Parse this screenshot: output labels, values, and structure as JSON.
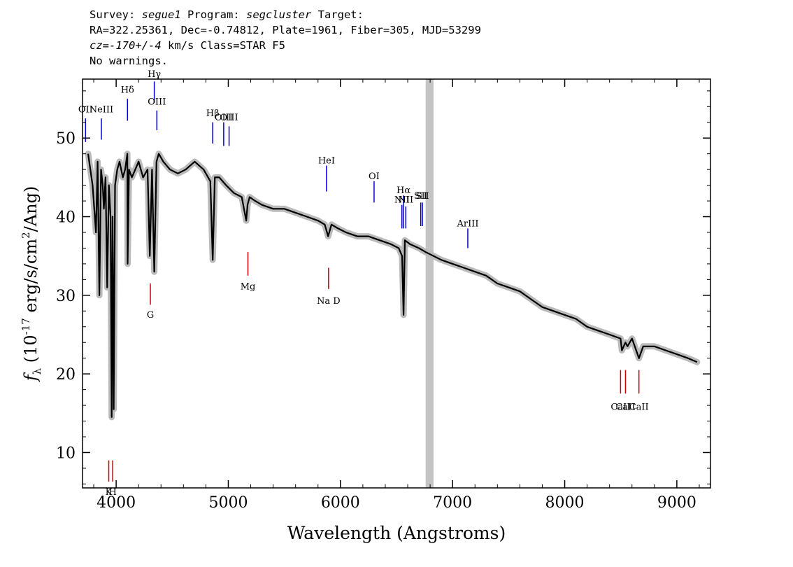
{
  "header": {
    "line1": {
      "survey_label": "Survey: ",
      "survey": "segue1",
      "program_label": " Program: ",
      "program": "segcluster",
      "target_label": " Target:"
    },
    "line2": "RA=322.25361, Dec=-0.74812, Plate=1961, Fiber=305, MJD=53299",
    "line3": {
      "cz": "cz=-170+/-4",
      "rest": " km/s Class=STAR F5"
    },
    "line4": "No warnings."
  },
  "chart_data": {
    "type": "line",
    "title": "",
    "xlabel": "Wavelength (Angstroms)",
    "ylabel": "f_λ (10^-17 erg/s/cm^2/Ang)",
    "xlim": [
      3700,
      9300
    ],
    "ylim": [
      5.5,
      57.5
    ],
    "x_ticks": [
      4000,
      5000,
      6000,
      7000,
      8000,
      9000
    ],
    "y_ticks": [
      10,
      20,
      30,
      40,
      50
    ],
    "grid": false,
    "masked_band": [
      6760,
      6830
    ],
    "colors": {
      "flux": "#000000",
      "error_band": "#bbbbbb",
      "emission": "#0000cc",
      "absorption": "#cc0000",
      "mask": "#c4c4c4"
    },
    "series": [
      {
        "x": [
          3750,
          3790,
          3820,
          3835,
          3850,
          3865,
          3880,
          3890,
          3905,
          3920,
          3935,
          3950,
          3960,
          3968,
          3978,
          3990,
          4010,
          4030,
          4060,
          4080,
          4100,
          4102,
          4115,
          4140,
          4170,
          4200,
          4240,
          4280,
          4300,
          4320,
          4340,
          4360,
          4380,
          4420,
          4480,
          4550,
          4620,
          4700,
          4780,
          4840,
          4861,
          4880,
          4920,
          4980,
          5050,
          5120,
          5160,
          5172,
          5190,
          5240,
          5300,
          5400,
          5500,
          5600,
          5700,
          5800,
          5860,
          5890,
          5920,
          5980,
          6050,
          6150,
          6250,
          6350,
          6450,
          6520,
          6550,
          6563,
          6575,
          6620,
          6700,
          6760,
          6830,
          6900,
          7000,
          7100,
          7200,
          7300,
          7400,
          7500,
          7600,
          7700,
          7800,
          7900,
          8000,
          8100,
          8200,
          8300,
          8400,
          8498,
          8510,
          8542,
          8560,
          8600,
          8662,
          8700,
          8800,
          8900,
          9000,
          9100,
          9180
        ],
        "y": [
          48,
          44,
          38,
          47,
          30,
          46,
          44,
          41,
          45,
          31,
          44,
          40,
          14.5,
          40,
          15.5,
          44,
          46,
          47,
          45,
          46,
          48,
          34,
          46,
          45,
          46,
          47,
          45,
          46,
          35,
          46,
          33,
          47,
          48,
          47,
          46,
          45.5,
          46,
          47,
          46,
          44.5,
          34.5,
          45,
          45,
          44,
          43,
          42.5,
          39.5,
          41.5,
          42.5,
          42,
          41.5,
          41,
          41,
          40.5,
          40,
          39.5,
          39,
          37.5,
          39,
          38.5,
          38,
          37.5,
          37.5,
          37,
          36.5,
          36,
          35,
          27.5,
          37,
          36.5,
          36,
          35.5,
          35,
          34.5,
          34,
          33.5,
          33,
          32.5,
          31.5,
          31,
          30.5,
          29.5,
          28.5,
          28,
          27.5,
          27,
          26,
          25.5,
          25,
          24.5,
          23,
          24,
          23.5,
          24.5,
          22,
          23.5,
          23.5,
          23,
          22.5,
          22,
          21.5
        ]
      }
    ],
    "lines": [
      {
        "label": "OII",
        "wave": 3727,
        "color": "emission",
        "side": "top",
        "y0": 49.5,
        "y1": 52.5,
        "ly": 53
      },
      {
        "label": "NeIII",
        "wave": 3868,
        "color": "emission",
        "side": "top",
        "y0": 49.8,
        "y1": 52.5,
        "ly": 53
      },
      {
        "label": "Hδ",
        "wave": 4101,
        "color": "emission",
        "side": "top",
        "y0": 52.2,
        "y1": 55,
        "ly": 55.5
      },
      {
        "label": "Hγ",
        "wave": 4340,
        "color": "emission",
        "side": "top",
        "y0": 54.5,
        "y1": 57.2,
        "ly": 57.5
      },
      {
        "label": "OIII",
        "wave": 4363,
        "color": "emission",
        "side": "top",
        "y0": 51,
        "y1": 53.5,
        "ly": 54
      },
      {
        "label": "Hβ",
        "wave": 4861,
        "color": "emission",
        "side": "top",
        "y0": 49.3,
        "y1": 52,
        "ly": 52.5
      },
      {
        "label": "OIII",
        "wave": 4959,
        "color": "emission",
        "side": "top",
        "y0": 49,
        "y1": 52,
        "ly": 52
      },
      {
        "label": "OIII",
        "wave": 5007,
        "color": "emission",
        "side": "top",
        "y0": 49,
        "y1": 51.5,
        "ly": 52
      },
      {
        "label": "HeI",
        "wave": 5876,
        "color": "emission",
        "side": "top",
        "y0": 43.2,
        "y1": 46.5,
        "ly": 46.5
      },
      {
        "label": "OI",
        "wave": 6300,
        "color": "emission",
        "side": "top",
        "y0": 41.8,
        "y1": 44.5,
        "ly": 44.5
      },
      {
        "label": "NII",
        "wave": 6548,
        "color": "emission",
        "side": "top",
        "y0": 38.5,
        "y1": 41.5,
        "ly": 41.5
      },
      {
        "label": "Hα",
        "wave": 6563,
        "color": "emission",
        "side": "top",
        "y0": 38.5,
        "y1": 42.7,
        "ly": 42.7
      },
      {
        "label": "NII",
        "wave": 6583,
        "color": "emission",
        "side": "top",
        "y0": 38.5,
        "y1": 41.3,
        "ly": 41.5
      },
      {
        "label": "SII",
        "wave": 6716,
        "color": "emission",
        "side": "top",
        "y0": 38.8,
        "y1": 41.8,
        "ly": 42
      },
      {
        "label": "SII",
        "wave": 6731,
        "color": "emission",
        "side": "top",
        "y0": 38.8,
        "y1": 41.8,
        "ly": 42
      },
      {
        "label": "ArIII",
        "wave": 7136,
        "color": "emission",
        "side": "top",
        "y0": 36,
        "y1": 38.5,
        "ly": 38.5
      },
      {
        "label": "K",
        "wave": 3934,
        "color": "absorption",
        "side": "bottom",
        "y0": 9,
        "y1": 6.3,
        "ly": 5.7
      },
      {
        "label": "H",
        "wave": 3969,
        "color": "absorption",
        "side": "bottom",
        "y0": 9,
        "y1": 6.3,
        "ly": 5.7
      },
      {
        "label": "G",
        "wave": 4305,
        "color": "absorption",
        "side": "bottom",
        "y0": 31.5,
        "y1": 28.8,
        "ly": 28.2
      },
      {
        "label": "Mg",
        "wave": 5175,
        "color": "absorption",
        "side": "bottom",
        "y0": 35.5,
        "y1": 32.5,
        "ly": 31.8
      },
      {
        "label": "Na D",
        "wave": 5894,
        "color": "absorption",
        "side": "bottom",
        "y0": 33.5,
        "y1": 30.8,
        "ly": 30
      },
      {
        "label": "CaII",
        "wave": 8498,
        "color": "absorption",
        "side": "bottom",
        "y0": 20.5,
        "y1": 17.5,
        "ly": 16.5
      },
      {
        "label": "CaII",
        "wave": 8542,
        "color": "absorption",
        "side": "bottom",
        "y0": 20.5,
        "y1": 17.5,
        "ly": 16.5
      },
      {
        "label": "CaII",
        "wave": 8662,
        "color": "absorption",
        "side": "bottom",
        "y0": 20.5,
        "y1": 17.5,
        "ly": 16.5
      }
    ]
  }
}
